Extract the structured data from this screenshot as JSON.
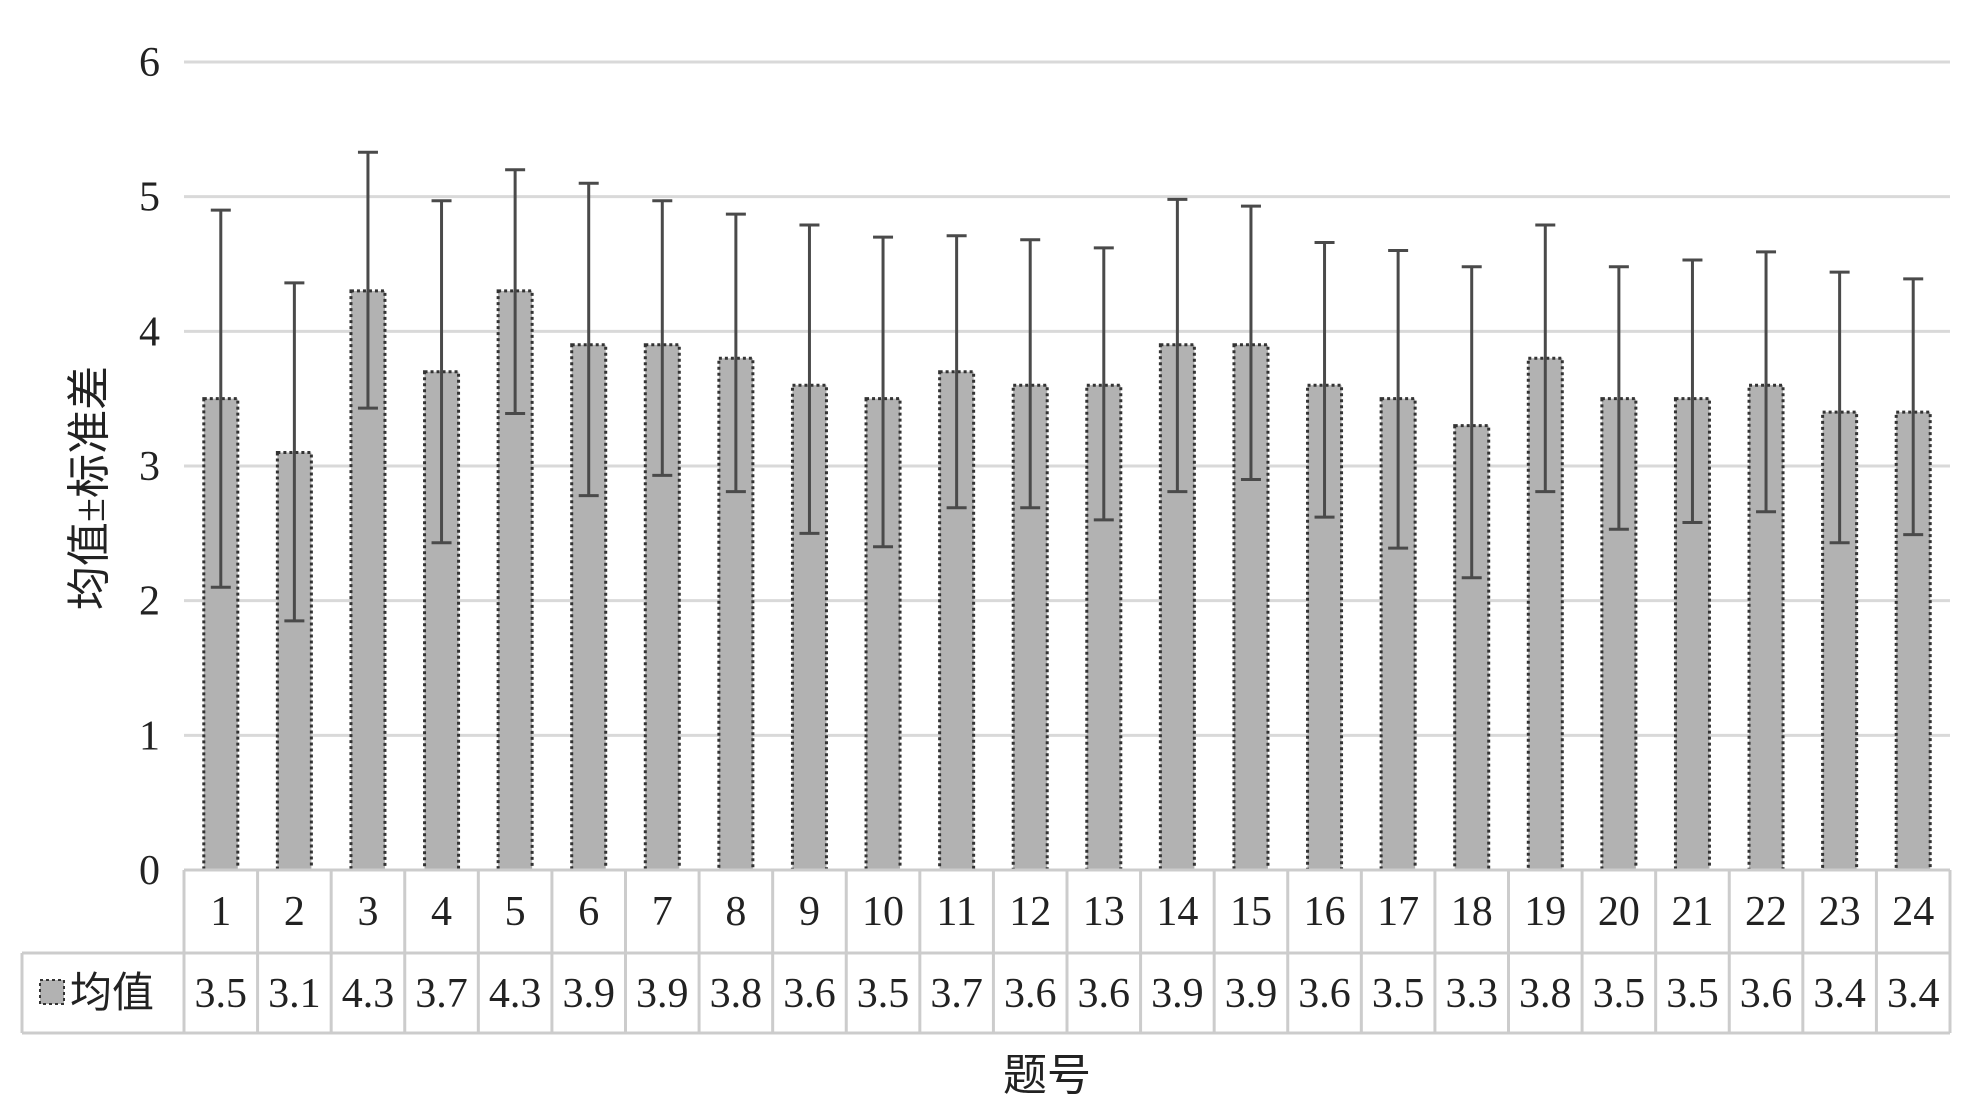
{
  "chart_data": {
    "type": "bar",
    "categories": [
      "1",
      "2",
      "3",
      "4",
      "5",
      "6",
      "7",
      "8",
      "9",
      "10",
      "11",
      "12",
      "13",
      "14",
      "15",
      "16",
      "17",
      "18",
      "19",
      "20",
      "21",
      "22",
      "23",
      "24"
    ],
    "series": [
      {
        "name": "均值",
        "values": [
          3.5,
          3.1,
          4.3,
          3.7,
          4.3,
          3.9,
          3.9,
          3.8,
          3.6,
          3.5,
          3.7,
          3.6,
          3.6,
          3.9,
          3.9,
          3.6,
          3.5,
          3.3,
          3.8,
          3.5,
          3.5,
          3.6,
          3.4,
          3.4
        ],
        "error_high": [
          4.9,
          4.36,
          5.33,
          4.97,
          5.2,
          5.1,
          4.97,
          4.87,
          4.79,
          4.7,
          4.71,
          4.68,
          4.62,
          4.98,
          4.93,
          4.66,
          4.6,
          4.48,
          4.79,
          4.48,
          4.53,
          4.59,
          4.44,
          4.39
        ],
        "error_low": [
          2.1,
          1.85,
          3.43,
          2.43,
          3.39,
          2.78,
          2.93,
          2.81,
          2.5,
          2.4,
          2.69,
          2.69,
          2.6,
          2.81,
          2.9,
          2.62,
          2.39,
          2.17,
          2.81,
          2.53,
          2.58,
          2.66,
          2.43,
          2.49
        ]
      }
    ],
    "table_values": [
      "3.5",
      "3.1",
      "4.3",
      "3.7",
      "4.3",
      "3.9",
      "3.9",
      "3.8",
      "3.6",
      "3.5",
      "3.7",
      "3.6",
      "3.6",
      "3.9",
      "3.9",
      "3.6",
      "3.5",
      "3.3",
      "3.8",
      "3.5",
      "3.5",
      "3.6",
      "3.4",
      "3.4"
    ],
    "xlabel": "题号",
    "ylabel": "均值±标准差",
    "ylim": [
      0,
      6
    ],
    "yticks": [
      "0",
      "1",
      "2",
      "3",
      "4",
      "5",
      "6"
    ],
    "grid": true,
    "legend": "data-table-left",
    "colors": {
      "bar_fill": "#b2b2b2",
      "bar_border": "#333333",
      "error_bar": "#4a4a4a",
      "grid": "#d9d9d9",
      "table_border": "#cccccc"
    }
  }
}
